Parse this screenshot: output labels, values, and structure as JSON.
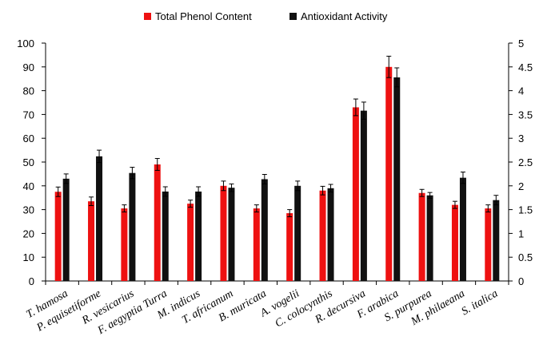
{
  "chart_data": {
    "type": "bar",
    "title": "",
    "categories": [
      "T. hamosa",
      "P. equisetiforme",
      "R. vesicarius",
      "F. aegyptia Turra",
      "M. indicus",
      "T. africanum",
      "B. muricata",
      "A. vogelii",
      "C. colocynthis",
      "R. decursiva",
      "F. arabica",
      "S. purpurea",
      "M. philaeana",
      "S. italica"
    ],
    "series": [
      {
        "name": "Total Phenol Content",
        "axis": "left",
        "color": "#ee1111",
        "values": [
          37.5,
          33.5,
          30.5,
          49,
          32.5,
          40,
          30.5,
          28.5,
          38,
          73,
          90,
          37,
          32,
          30.5
        ],
        "errors": [
          2,
          1.8,
          1.5,
          2.5,
          1.5,
          2,
          1.5,
          1.5,
          1.8,
          3.5,
          4.5,
          1.5,
          1.5,
          1.5
        ]
      },
      {
        "name": "Antioxidant Activity",
        "axis": "right",
        "color": "#111111",
        "values": [
          2.15,
          2.62,
          2.27,
          1.88,
          1.88,
          1.96,
          2.14,
          2.0,
          1.95,
          3.58,
          4.28,
          1.8,
          2.17,
          1.7
        ],
        "errors": [
          0.1,
          0.13,
          0.12,
          0.1,
          0.1,
          0.08,
          0.1,
          0.1,
          0.08,
          0.18,
          0.2,
          0.06,
          0.12,
          0.1
        ]
      }
    ],
    "y_left": {
      "min": 0,
      "max": 100,
      "ticks": [
        "0",
        "10",
        "20",
        "30",
        "40",
        "50",
        "60",
        "70",
        "80",
        "90",
        "100"
      ]
    },
    "y_right": {
      "min": 0,
      "max": 5,
      "ticks": [
        "0",
        "0.5",
        "1",
        "1.5",
        "2",
        "2.5",
        "3",
        "3.5",
        "4",
        "4.5",
        "5"
      ]
    },
    "legend_position": "top"
  }
}
